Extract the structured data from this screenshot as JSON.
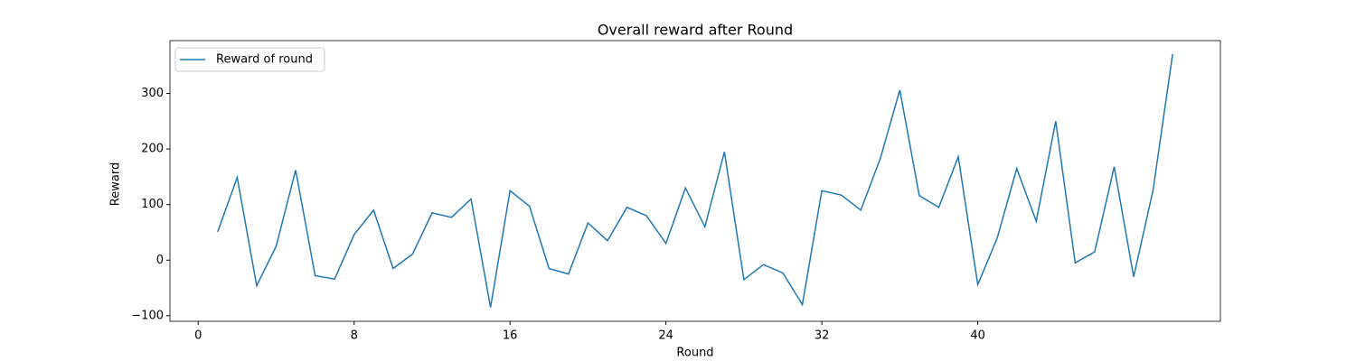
{
  "chart_data": {
    "type": "line",
    "title": "Overall reward after Round",
    "x_label": "Round",
    "y_label": "Reward",
    "x": [
      1,
      2,
      3,
      4,
      5,
      6,
      7,
      8,
      9,
      10,
      11,
      12,
      13,
      14,
      15,
      16,
      17,
      18,
      19,
      20,
      21,
      22,
      23,
      24,
      25,
      26,
      27,
      28,
      29,
      30,
      31,
      32,
      33,
      34,
      35,
      36,
      37,
      38,
      39,
      40,
      41,
      42,
      43,
      44,
      45,
      46,
      47,
      48,
      49,
      50
    ],
    "series": [
      {
        "name": "Reward of round",
        "color": "#1f77b4",
        "values": [
          51,
          149,
          -46,
          25,
          162,
          -28,
          -34,
          46,
          90,
          -15,
          11,
          85,
          77,
          110,
          -85,
          125,
          97,
          -15,
          -25,
          67,
          35,
          95,
          80,
          30,
          130,
          60,
          195,
          -35,
          -8,
          -23,
          -80,
          125,
          117,
          90,
          183,
          306,
          116,
          95,
          186,
          -44,
          40,
          165,
          70,
          250,
          -5,
          15,
          168,
          -30,
          127,
          371
        ]
      }
    ],
    "xlim": [
      -1.45,
      52.45
    ],
    "ylim": [
      -110,
      395
    ],
    "xticks": [
      0,
      8,
      16,
      24,
      32,
      40
    ],
    "yticks": [
      {
        "value": -100,
        "label": "−100"
      },
      0,
      100,
      200,
      300
    ],
    "legend": "upper left"
  }
}
